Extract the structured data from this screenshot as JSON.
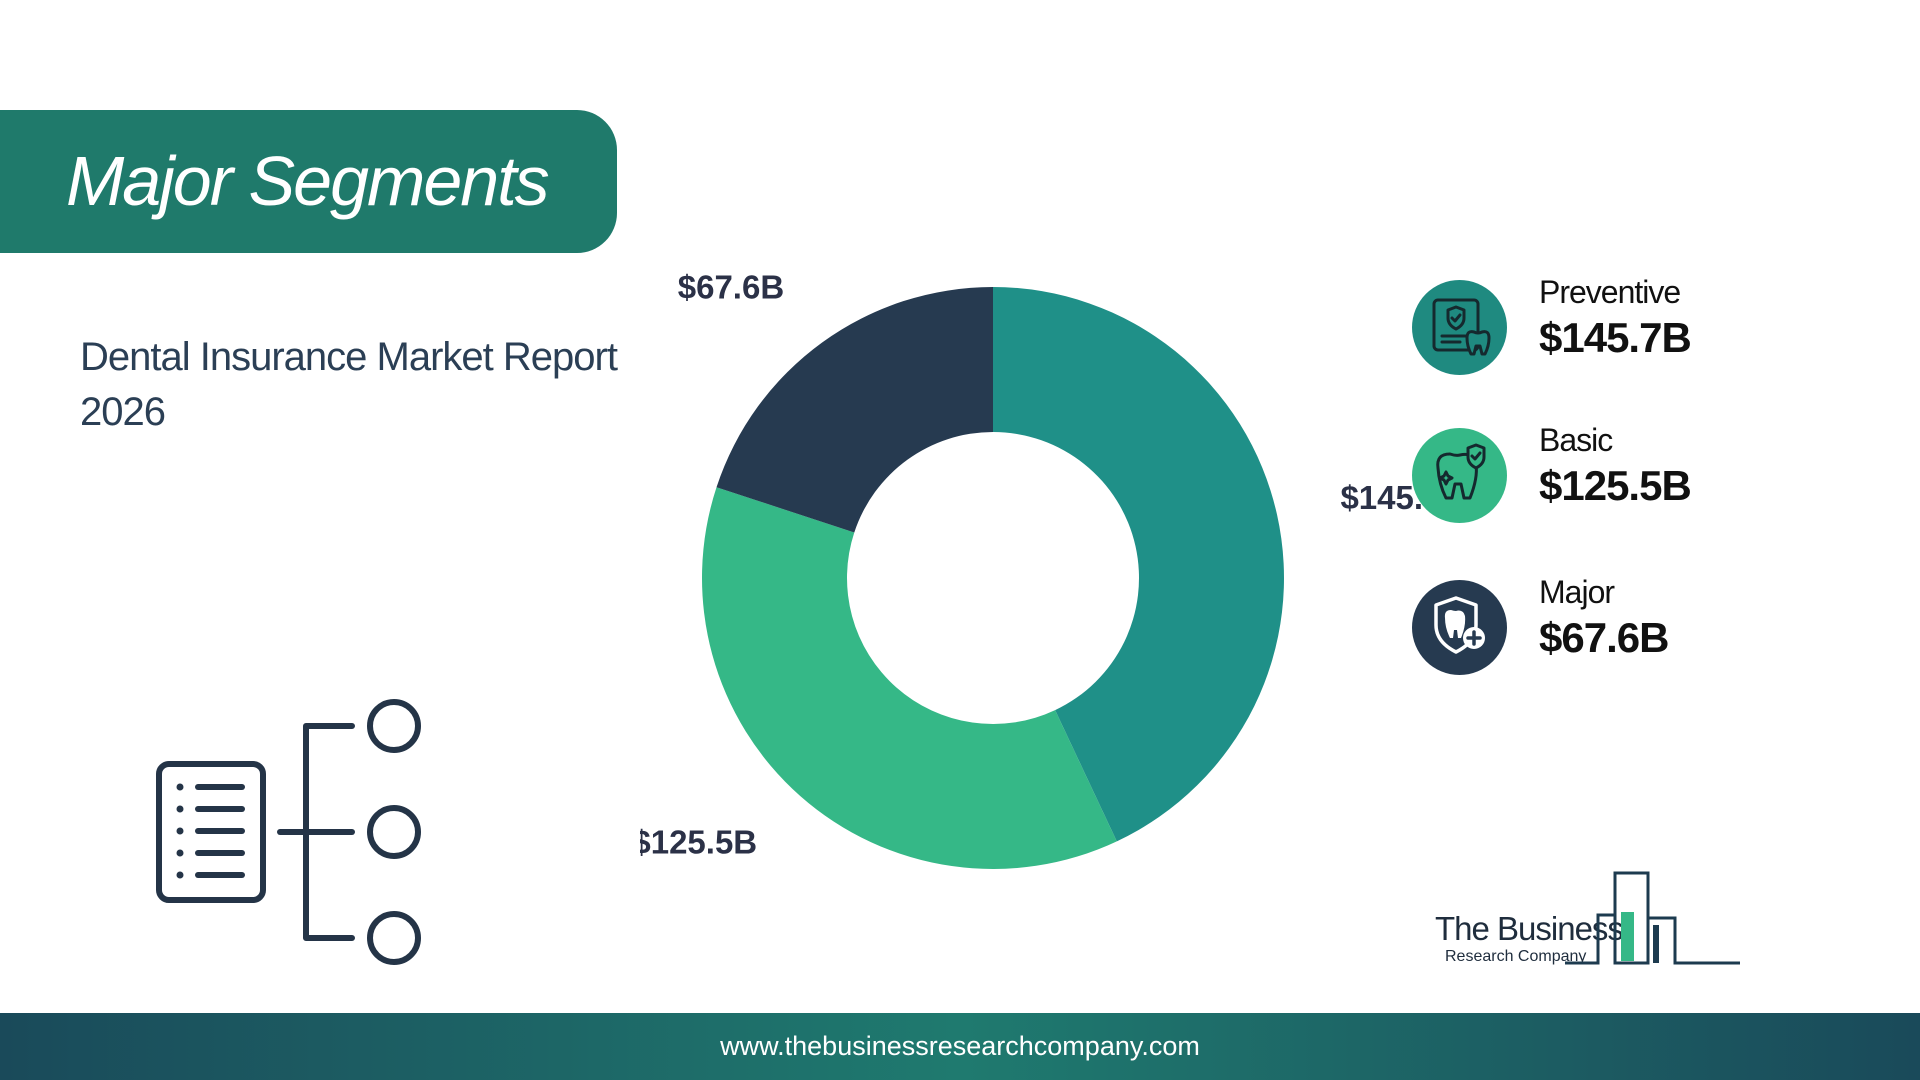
{
  "header": {
    "title": "Major Segments"
  },
  "report": {
    "subtitle": "Dental Insurance Market Report 2026"
  },
  "chart_data": {
    "type": "pie",
    "donut": true,
    "categories": [
      "Preventive",
      "Basic",
      "Major"
    ],
    "values": [
      145.7,
      125.5,
      67.6
    ],
    "value_labels": [
      "$145.7B",
      "$125.5B",
      "$67.6B"
    ],
    "unit": "$B",
    "colors": [
      "#1f9088",
      "#35b887",
      "#263a50"
    ],
    "legend": "right"
  },
  "legend": {
    "items": [
      {
        "name": "Preventive",
        "value": "$145.7B",
        "icon": "tooth-document-shield-icon",
        "color": "#1f8a80"
      },
      {
        "name": "Basic",
        "value": "$125.5B",
        "icon": "tooth-shield-sparkle-icon",
        "color": "#35b887"
      },
      {
        "name": "Major",
        "value": "$67.6B",
        "icon": "tooth-shield-plus-icon",
        "color": "#263a50"
      }
    ]
  },
  "logo": {
    "line1": "The Business",
    "line2": "Research Company"
  },
  "footer": {
    "url": "www.thebusinessresearchcompany.com"
  },
  "icons": {
    "decorative": "list-tree-icon"
  }
}
